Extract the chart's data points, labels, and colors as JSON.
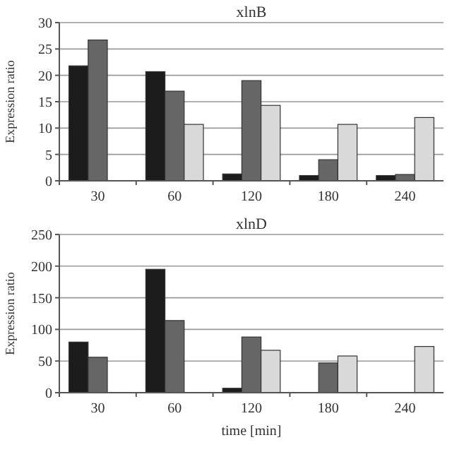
{
  "chart_data": [
    {
      "type": "bar",
      "title": "xlnB",
      "ylabel": "Expression ratio",
      "categories": [
        "30",
        "60",
        "120",
        "180",
        "240"
      ],
      "series": [
        {
          "color": "#1c1c1c",
          "values": [
            21.8,
            20.7,
            1.3,
            1,
            1
          ]
        },
        {
          "color": "#666666",
          "values": [
            26.7,
            17,
            19,
            4,
            1.2
          ]
        },
        {
          "color": "#d9d9d9",
          "values": [
            null,
            10.7,
            14.3,
            10.7,
            12
          ]
        }
      ],
      "ylim": [
        0,
        30
      ],
      "yticks": [
        0,
        5,
        10,
        15,
        20,
        25,
        30
      ],
      "grid": "y"
    },
    {
      "type": "bar",
      "title": "xlnD",
      "xlabel": "time [min]",
      "ylabel": "Expression ratio",
      "categories": [
        "30",
        "60",
        "120",
        "180",
        "240"
      ],
      "series": [
        {
          "color": "#1c1c1c",
          "values": [
            80,
            195,
            7,
            null,
            null
          ]
        },
        {
          "color": "#666666",
          "values": [
            56,
            114,
            88,
            47,
            null
          ]
        },
        {
          "color": "#d9d9d9",
          "values": [
            null,
            null,
            67,
            58,
            73
          ]
        }
      ],
      "ylim": [
        0,
        250
      ],
      "yticks": [
        0,
        50,
        100,
        150,
        200,
        250
      ],
      "grid": "y"
    }
  ]
}
